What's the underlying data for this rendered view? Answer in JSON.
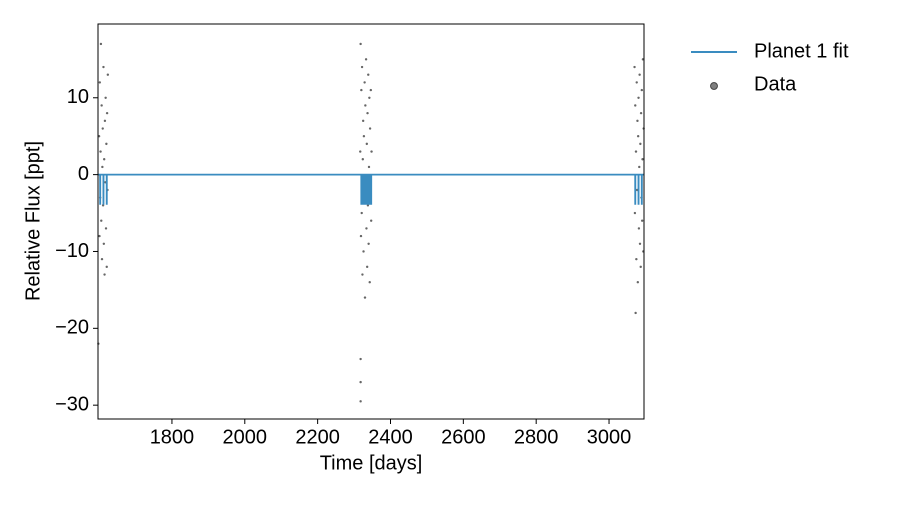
{
  "chart_data": {
    "type": "line",
    "xlabel": "Time [days]",
    "ylabel": "Relative Flux [ppt]",
    "xlim": [
      1597,
      3096
    ],
    "ylim": [
      -31.8,
      19.6
    ],
    "xticks": [
      1800,
      2000,
      2200,
      2400,
      2600,
      2800,
      3000
    ],
    "yticks": [
      {
        "value": -30,
        "label": "−30"
      },
      {
        "value": -20,
        "label": "−20"
      },
      {
        "value": -10,
        "label": "−10"
      },
      0,
      10
    ],
    "grid": false,
    "legend": "outside upper right",
    "series": [
      {
        "name": "Planet 1 fit",
        "type": "line",
        "color": "#3a8cc0",
        "x": [
          1598,
          1602.8,
          1602.9,
          1603.1,
          1603.2,
          1611.8,
          1611.9,
          1612.1,
          1612.2,
          1620.8,
          1620.9,
          1621.1,
          1621.2,
          2319.8,
          2319.9,
          2320.1,
          2320.2,
          2322.8,
          2322.9,
          2323.1,
          2323.2,
          2325.8,
          2325.9,
          2326.1,
          2326.2,
          2328.8,
          2328.9,
          2329.1,
          2329.2,
          2331.8,
          2331.9,
          2332.1,
          2332.2,
          2334.8,
          2334.9,
          2335.1,
          2335.2,
          2337.8,
          2337.9,
          2338.1,
          2338.2,
          2340.8,
          2340.9,
          2341.1,
          2341.2,
          2343.8,
          2343.9,
          2344.1,
          2344.2,
          2346.8,
          2346.9,
          2347.1,
          2347.2,
          3071.8,
          3071.9,
          3072.1,
          3072.2,
          3080.8,
          3080.9,
          3081.1,
          3081.2,
          3089.8,
          3089.9,
          3090.1,
          3090.2,
          3096
        ],
        "y": [
          0,
          0,
          -3.8,
          -3.8,
          0,
          0,
          -3.8,
          -3.8,
          0,
          0,
          -3.8,
          -3.8,
          0,
          0,
          -3.8,
          -3.8,
          0,
          0,
          -3.8,
          -3.8,
          0,
          0,
          -3.8,
          -3.8,
          0,
          0,
          -3.8,
          -3.8,
          0,
          0,
          -3.8,
          -3.8,
          0,
          0,
          -3.8,
          -3.8,
          0,
          0,
          -3.8,
          -3.8,
          0,
          0,
          -3.8,
          -3.8,
          0,
          0,
          -3.8,
          -3.8,
          0,
          0,
          -3.8,
          -3.8,
          0,
          0,
          -3.8,
          -3.8,
          0,
          0,
          -3.8,
          -3.8,
          0,
          0,
          -3.8,
          -3.8,
          0,
          0
        ]
      },
      {
        "name": "Data",
        "type": "scatter",
        "color": "#000000",
        "x": [
          1598,
          1600,
          1601,
          1602,
          1603,
          1604,
          1605,
          1606,
          1607,
          1608,
          1609,
          1610,
          1611,
          1612,
          1613,
          1614,
          1615,
          1616,
          1617,
          1618,
          1619,
          1620,
          1621,
          1622,
          1623,
          1624,
          2317,
          2318,
          2318,
          2318,
          2318,
          2319,
          2320,
          2321,
          2322,
          2323,
          2324,
          2325,
          2326,
          2327,
          2328,
          2329,
          2330,
          2331,
          2332,
          2333,
          2334,
          2335,
          2336,
          2337,
          2338,
          2339,
          2340,
          2341,
          2342,
          2343,
          2344,
          2345,
          2346,
          2347,
          2348,
          3070,
          3071,
          3072,
          3073,
          3074,
          3075,
          3076,
          3077,
          3078,
          3079,
          3080,
          3081,
          3082,
          3083,
          3084,
          3085,
          3086,
          3087,
          3088,
          3089,
          3090,
          3091,
          3092,
          3093,
          3094,
          3095
        ],
        "y": [
          -22,
          5,
          -8,
          12,
          -3,
          3,
          17,
          -6,
          9,
          -11,
          1,
          6,
          -4,
          14,
          -9,
          2,
          -13,
          7,
          -1,
          10,
          -7,
          4,
          -12,
          8,
          -2,
          13,
          3,
          -29.5,
          -27,
          -24,
          17,
          -8,
          11,
          -5,
          14,
          -13,
          2,
          7,
          -10,
          5,
          -3,
          12,
          -16,
          9,
          -1,
          15,
          -7,
          4,
          -12,
          8,
          -4,
          13,
          -9,
          1,
          10,
          -14,
          6,
          -2,
          11,
          -6,
          3,
          14,
          -5,
          9,
          -18,
          3,
          -11,
          12,
          -2,
          7,
          -14,
          5,
          10,
          -7,
          1,
          13,
          -9,
          4,
          -12,
          8,
          -3,
          11,
          -6,
          2,
          15,
          -10,
          6
        ]
      }
    ]
  }
}
